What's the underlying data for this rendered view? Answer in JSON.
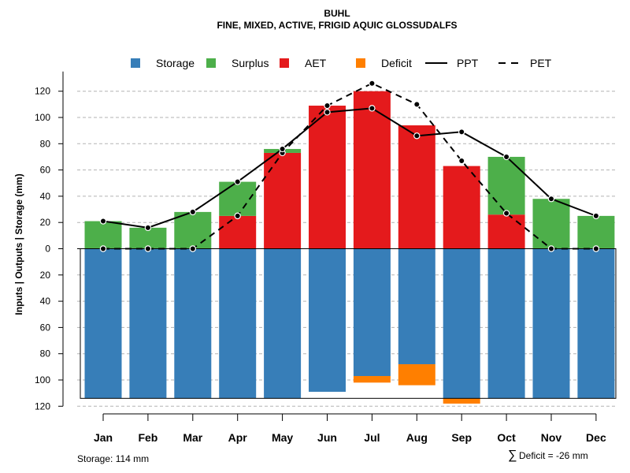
{
  "chart_data": {
    "type": "bar",
    "title": "BUHL",
    "subtitle": "FINE, MIXED, ACTIVE, FRIGID AQUIC GLOSSUDALFS",
    "ylabel": "Inputs | Outputs | Storage     (mm)",
    "categories": [
      "Jan",
      "Feb",
      "Mar",
      "Apr",
      "May",
      "Jun",
      "Jul",
      "Aug",
      "Sep",
      "Oct",
      "Nov",
      "Dec"
    ],
    "ylim": [
      -120,
      130
    ],
    "yticks": [
      120,
      100,
      80,
      60,
      40,
      20,
      0,
      -20,
      -40,
      -60,
      -80,
      -100,
      -120
    ],
    "ytick_labels": [
      "120",
      "100",
      "80",
      "60",
      "40",
      "20",
      "0",
      "20",
      "40",
      "60",
      "80",
      "100",
      "120"
    ],
    "grid": true,
    "series": [
      {
        "name": "Storage",
        "key": "storage",
        "values": [
          -114,
          -114,
          -114,
          -114,
          -114,
          -109,
          -97,
          -88,
          -114,
          -114,
          -114,
          -114
        ]
      },
      {
        "name": "Surplus",
        "key": "surplus",
        "values": [
          21,
          16,
          28,
          26,
          3,
          0,
          0,
          0,
          0,
          44,
          38,
          25
        ]
      },
      {
        "name": "AET",
        "key": "aet",
        "values": [
          0,
          0,
          0,
          25,
          73,
          109,
          120,
          94,
          63,
          26,
          0,
          0
        ]
      },
      {
        "name": "Deficit",
        "key": "deficit",
        "values": [
          0,
          0,
          0,
          0,
          0,
          0,
          -5,
          -16,
          -4,
          0,
          0,
          0
        ]
      },
      {
        "name": "PPT",
        "key": "ppt",
        "values": [
          21,
          16,
          28,
          51,
          76,
          104,
          107,
          86,
          89,
          70,
          38,
          25
        ]
      },
      {
        "name": "PET",
        "key": "pet",
        "values": [
          0,
          0,
          0,
          25,
          73,
          109,
          126,
          110,
          67,
          27,
          0,
          0
        ]
      }
    ],
    "legend": [
      {
        "label": "Storage",
        "kind": "box",
        "color": "#377EB8"
      },
      {
        "label": "Surplus",
        "kind": "box",
        "color": "#4DAF4A"
      },
      {
        "label": "AET",
        "kind": "box",
        "color": "#E41A1C"
      },
      {
        "label": "Deficit",
        "kind": "box",
        "color": "#FF7F00"
      },
      {
        "label": "PPT",
        "kind": "solid",
        "color": "#000000"
      },
      {
        "label": "PET",
        "kind": "dashed",
        "color": "#000000"
      }
    ],
    "legend_position": "top",
    "colors": {
      "storage": "#377EB8",
      "surplus": "#4DAF4A",
      "aet": "#E41A1C",
      "deficit": "#FF7F00",
      "line": "#000000"
    }
  },
  "footer": {
    "storage_note": "Storage: 114 mm",
    "deficit_symbol": "∑",
    "deficit_note": "Deficit = -26 mm"
  }
}
